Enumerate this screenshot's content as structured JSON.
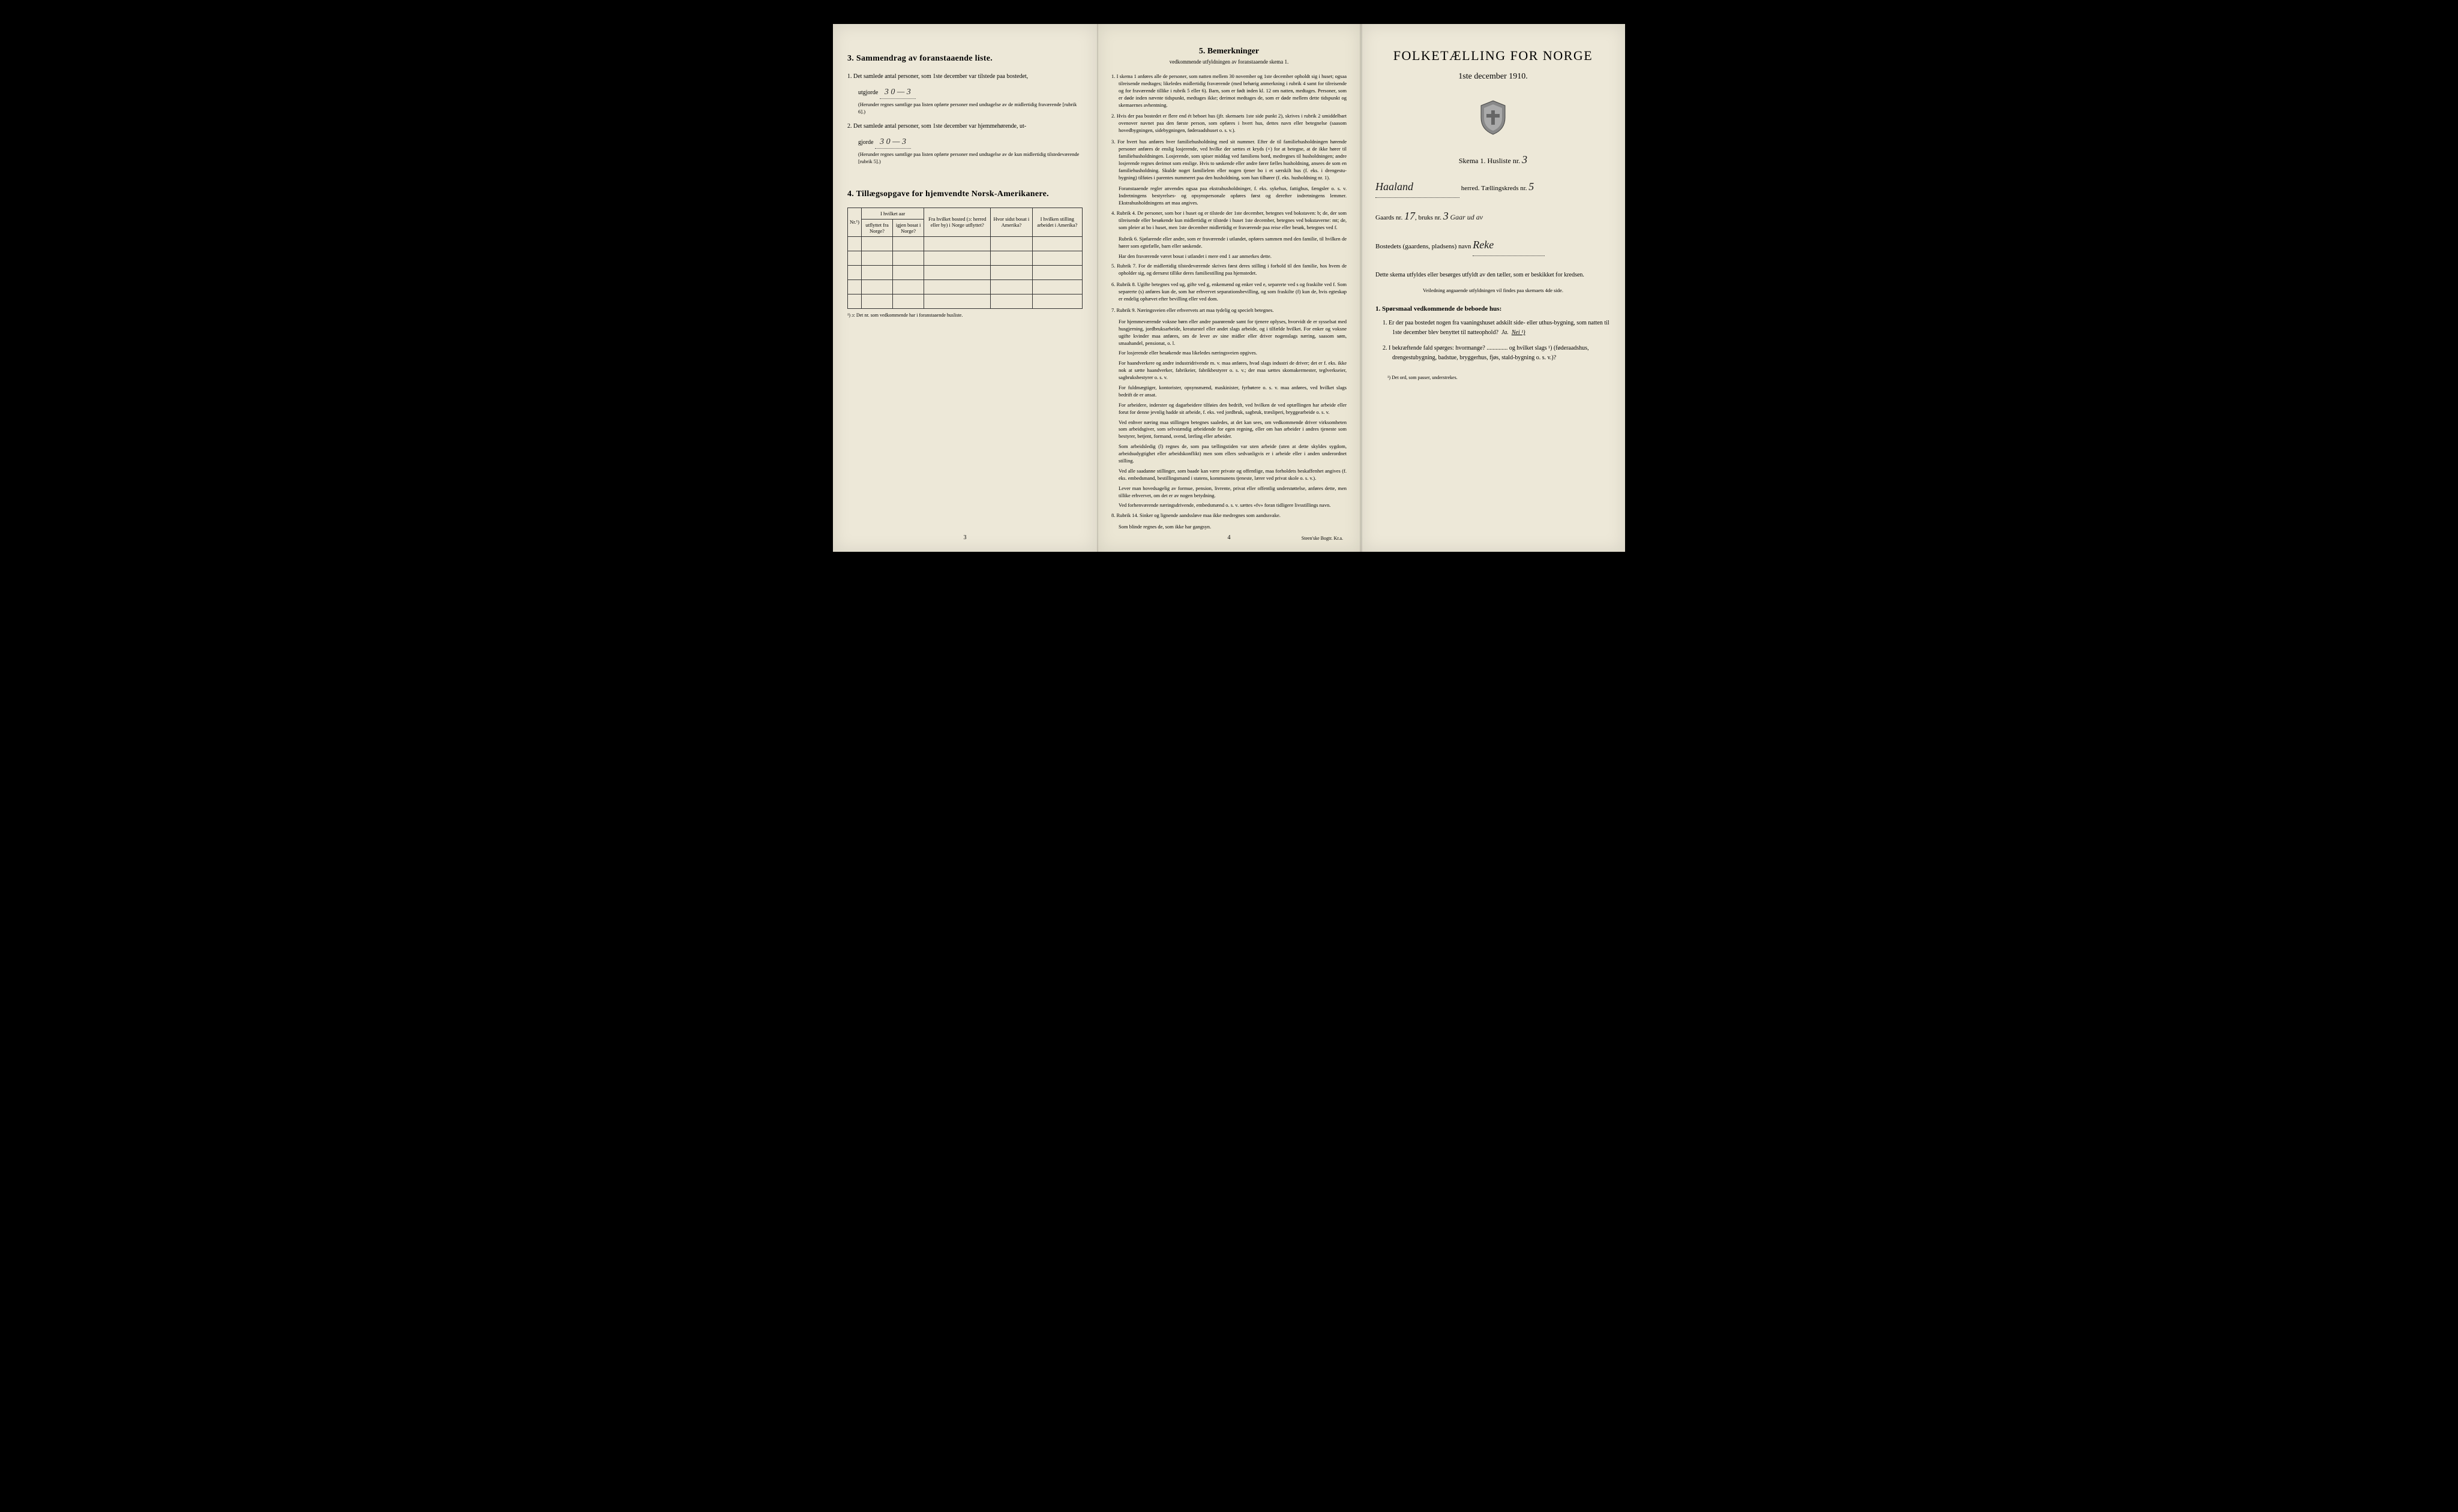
{
  "page3": {
    "section3_title": "3.  Sammendrag av foranstaaende liste.",
    "item1_text": "1. Det samlede antal personer, som 1ste december var tilstede paa bostedet,",
    "item1_utgjorde": "utgjorde",
    "item1_value": "3   0 — 3",
    "item1_note": "(Herunder regnes samtlige paa listen opførte personer med undtagelse av de midlertidig fraværende [rubrik 6].)",
    "item2_text": "2. Det samlede antal personer, som 1ste december var hjemmehørende, ut-",
    "item2_gjorde": "gjorde",
    "item2_value": "3   0 — 3",
    "item2_note": "(Herunder regnes samtlige paa listen opførte personer med undtagelse av de kun midlertidig tilstedeværende [rubrik 5].)",
    "section4_title": "4.  Tillægsopgave for hjemvendte Norsk-Amerikanere.",
    "table": {
      "col_nr": "Nr.¹)",
      "col_aar_header": "I hvilket aar",
      "col_utflyttet": "utflyttet fra Norge?",
      "col_igjen": "igjen bosat i Norge?",
      "col_fra": "Fra hvilket bosted (ɔ: herred eller by) i Norge utflyttet?",
      "col_hvor": "Hvor sidst bosat i Amerika?",
      "col_stilling": "I hvilken stilling arbeidet i Amerika?",
      "row_count": 5
    },
    "table_footnote": "¹) ɔ: Det nr. som vedkommende har i foranstaaende husliste.",
    "page_num": "3"
  },
  "page4": {
    "title": "5.  Bemerkninger",
    "subtitle": "vedkommende utfyldningen av foranstaaende skema 1.",
    "items": [
      "1. I skema 1 anføres alle de personer, som natten mellem 30 november og 1ste december opholdt sig i huset; ogsaa tilreisende medtages; likeledes midlertidig fraværende (med behørig anmerkning i rubrik 4 samt for tilreisende og for fraværende tillike i rubrik 5 eller 6). Barn, som er født inden kl. 12 om natten, medtages. Personer, som er døde inden nævnte tidspunkt, medtages ikke; derimot medtages de, som er døde mellem dette tidspunkt og skemaernes avhentning.",
      "2. Hvis der paa bostedet er flere end ét beboet hus (jfr. skemaets 1ste side punkt 2), skrives i rubrik 2 umiddelbart ovenover navnet paa den første person, som opføres i hvert hus, dettes navn eller betegnelse (saasom hovedbygningen, sidebygningen, føderaadshuset o. s. v.).",
      "3. For hvert hus anføres hver familiehusholdning med sit nummer. Efter de til familiehusholdningen hørende personer anføres de enslig losjerende, ved hvilke der sættes et kryds (×) for at betegne, at de ikke hører til familiehusholdningen. Losjerende, som spiser middag ved familiens bord, medregnes til husholdningen; andre losjerende regnes derimot som enslige. Hvis to søskende eller andre fører fælles husholdning, ansees de som en familiehusholdning. Skulde noget familielem eller nogen tjener bo i et særskilt hus (f. eks. i drengestu-bygning) tilføies i parentes nummeret paa den husholdning, som han tilhører (f. eks. husholdning nr. 1).",
      "Foranstaaende regler anvendes ogsaa paa ekstrahusholdninger, f. eks. sykehus, fattighus, fængsler o. s. v. Indretningens bestyrelses- og opsynspersonale opføres først og derefter indretningens lemmer. Ekstrahusholdningens art maa angives.",
      "4. Rubrik 4. De personer, som bor i huset og er tilstede der 1ste december, betegnes ved bokstaven: b; de, der som tilreisende eller besøkende kun midlertidig er tilstede i huset 1ste december, betegnes ved bokstaverne: mt; de, som pleier at bo i huset, men 1ste december midlertidig er fraværende paa reise eller besøk, betegnes ved f.",
      "Rubrik 6. Sjøfarende eller andre, som er fraværende i utlandet, opføres sammen med den familie, til hvilken de hører som egtefælle, barn eller søskende.",
      "Har den fraværende været bosat i utlandet i mere end 1 aar anmerkes dette.",
      "5. Rubrik 7. For de midlertidig tilstedeværende skrives først deres stilling i forhold til den familie, hos hvem de opholder sig, og dernæst tillike deres familiestilling paa hjemstedet.",
      "6. Rubrik 8. Ugifte betegnes ved ug, gifte ved g, enkemænd og enker ved e, separerte ved s og fraskilte ved f. Som separerte (s) anføres kun de, som har erhvervet separationsbevilling, og som fraskilte (f) kun de, hvis egteskap er endelig ophævet efter bevilling eller ved dom.",
      "7. Rubrik 9. Næringsveien eller erhvervets art maa tydelig og specielt betegnes.",
      "For hjemmeværende voksne børn eller andre paarørende samt for tjenere oplyses, hvorvidt de er sysselsat med husgjerning, jordbruksarbeide, kreaturstel eller andet slags arbeide, og i tilfælde hvilket. For enker og voksne ugifte kvinder maa anføres, om de lever av sine midler eller driver nogenslags næring, saasom søm, smaahandel, pensionat, o. l.",
      "For losjerende eller besøkende maa likeledes næringsveien opgives.",
      "For haandverkere og andre industridrivende m. v. maa anføres, hvad slags industri de driver; det er f. eks. ikke nok at sætte haandverker, fabrikeier, fabrikbestyrer o. s. v.; der maa sættes skomakermester, teglverkseier, sagbruksbestyrer o. s. v.",
      "For fuldmægtiger, kontorister, opsynsmænd, maskinister, fyrbøtere o. s. v. maa anføres, ved hvilket slags bedrift de er ansat.",
      "For arbeidere, inderster og dagarbeidere tilføies den bedrift, ved hvilken de ved optællingen har arbeide eller forut for denne jevnlig hadde sit arbeide, f. eks. ved jordbruk, sagbruk, træsliperi, bryggearbeide o. s. v.",
      "Ved enhver næring maa stillingen betegnes saaledes, at det kan sees, om vedkommende driver virksomheten som arbeidsgiver, som selvstændig arbeidende for egen regning, eller om han arbeider i andres tjeneste som bestyrer, betjent, formand, svend, lærling eller arbeider.",
      "Som arbeidsledig (l) regnes de, som paa tællingstiden var uten arbeide (uten at dette skyldes sygdom, arbeidsudygtighet eller arbeidskonflikt) men som ellers sedvanligvis er i arbeide eller i anden underordnet stilling.",
      "Ved alle saadanne stillinger, som baade kan være private og offentlige, maa forholdets beskaffenhet angives (f. eks. embedsmand, bestillingsmand i statens, kommunens tjeneste, lærer ved privat skole o. s. v.).",
      "Lever man hovedsagelig av formue, pension, livrente, privat eller offentlig understøttelse, anføres dette, men tillike erhvervet, om det er av nogen betydning.",
      "Ved forhenværende næringsdrivende, embedsmænd o. s. v. sættes «fv» foran tidligere livsstillings navn.",
      "8. Rubrik 14. Sinker og lignende aandssløve maa ikke medregnes som aandssvake.",
      "Som blinde regnes de, som ikke har gangsyn."
    ],
    "page_num": "4",
    "printer": "Steen'ske Bogtr. Kr.a."
  },
  "cover": {
    "main_title": "FOLKETÆLLING FOR NORGE",
    "date": "1ste december 1910.",
    "skema_label": "Skema 1.  Husliste nr.",
    "husliste_nr": "3",
    "herred_value": "Haaland",
    "herred_label": "herred.  Tællingskreds nr.",
    "kreds_nr": "5",
    "gaards_label": "Gaards nr.",
    "gaards_nr": "17",
    "bruks_label": "bruks nr.",
    "bruks_nr": "3",
    "bruks_extra": "Gaar ud av",
    "bosted_label": "Bostedets (gaardens, pladsens) navn",
    "bosted_value": "Reke",
    "instruct_text": "Dette skema utfyldes eller besørges utfyldt av den tæller, som er beskikket for kredsen.",
    "instruct_small": "Veiledning angaaende utfyldningen vil findes paa skemaets 4de side.",
    "q_heading": "1. Spørsmaal vedkommende de beboede hus:",
    "q1": "1. Er der paa bostedet nogen fra vaaningshuset adskilt side- eller uthus-bygning, som natten til 1ste december blev benyttet til natteophold?",
    "q1_ja": "Ja.",
    "q1_nei": "Nei ¹)",
    "q2": "2. I bekræftende fald spørges: hvormange? .............. og hvilket slags ¹) (føderaadshus, drengestubygning, badstue, bryggerhus, fjøs, stald-bygning o. s. v.)?",
    "footnote": "¹) Det ord, som passer, understrekes."
  }
}
